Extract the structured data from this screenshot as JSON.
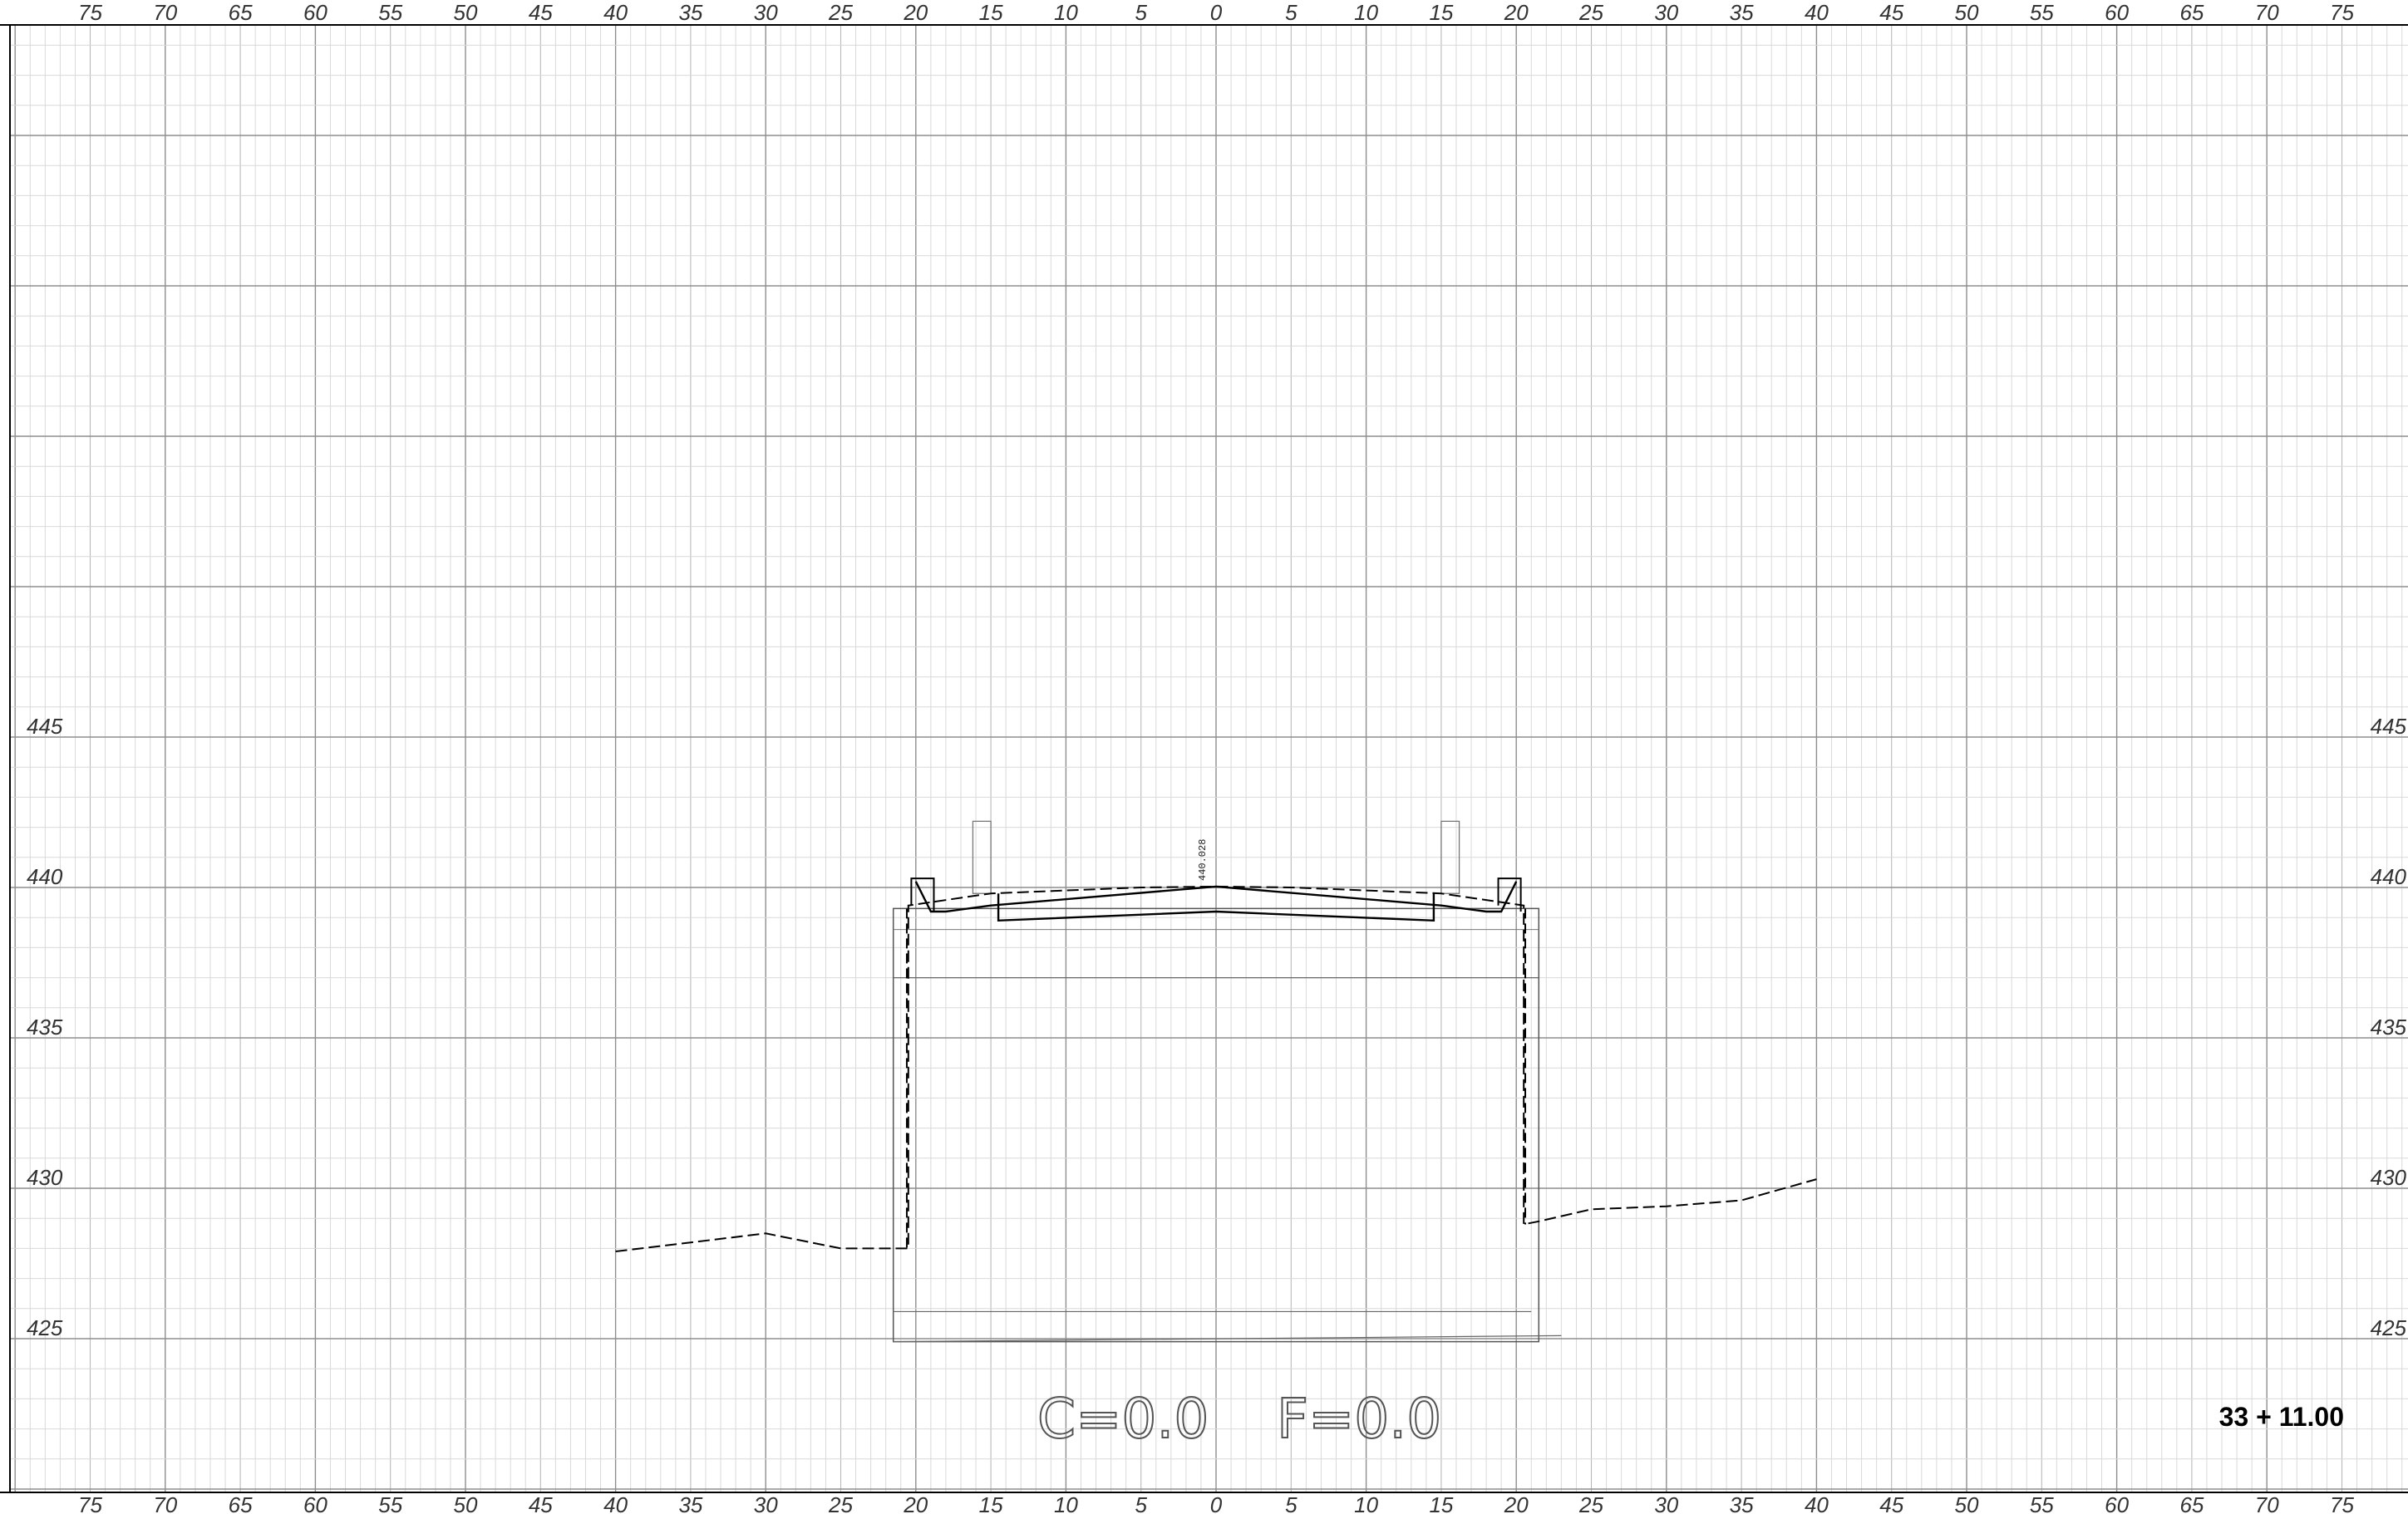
{
  "sheet": {
    "offset_ticks_top": [
      "75",
      "70",
      "65",
      "60",
      "55",
      "50",
      "45",
      "40",
      "35",
      "30",
      "25",
      "20",
      "15",
      "10",
      "5",
      "0",
      "5",
      "10",
      "15",
      "20",
      "25",
      "30",
      "35",
      "40",
      "45",
      "50",
      "55",
      "60",
      "65",
      "70",
      "75"
    ],
    "offset_ticks_bottom": [
      "75",
      "70",
      "65",
      "60",
      "55",
      "50",
      "45",
      "40",
      "35",
      "30",
      "25",
      "20",
      "15",
      "10",
      "5",
      "0",
      "5",
      "10",
      "15",
      "20",
      "25",
      "30",
      "35",
      "40",
      "45",
      "50",
      "55",
      "60",
      "65",
      "70",
      "75"
    ],
    "elevation_ticks": [
      "445",
      "440",
      "435",
      "430",
      "425"
    ],
    "cut_label": "C=0.0",
    "fill_label": "F=0.0",
    "station_label": "33 + 11.00",
    "centerline_elevation": "440.028"
  },
  "colors": {
    "background": "#ffffff",
    "grid_minor": "#d9d9d9",
    "grid_major": "#8e8e8e",
    "linework": "#000000"
  },
  "chart_data": {
    "type": "line",
    "x_range": [
      -80,
      80
    ],
    "y_range": [
      420,
      470
    ],
    "series": [
      {
        "values_xy": [
          [
            -40,
            427.9
          ],
          [
            -35,
            428.2
          ],
          [
            -30,
            428.5
          ],
          [
            -25,
            428.0
          ],
          [
            -21,
            428.0
          ],
          [
            -20.5,
            428.0
          ],
          [
            -20.5,
            439.4
          ],
          [
            -15,
            439.8
          ],
          [
            -5,
            440.0
          ],
          [
            0,
            440.03
          ],
          [
            5,
            440.0
          ],
          [
            15,
            439.8
          ],
          [
            20.5,
            439.4
          ],
          [
            20.5,
            428.8
          ],
          [
            21.5,
            428.9
          ],
          [
            25,
            429.3
          ],
          [
            30,
            429.4
          ],
          [
            35,
            429.6
          ],
          [
            40,
            430.3
          ]
        ]
      },
      {
        "values_xy": [
          [
            -20,
            440.2
          ],
          [
            -19,
            439.2
          ],
          [
            -18,
            439.2
          ],
          [
            -15,
            439.4
          ],
          [
            0,
            440.03
          ],
          [
            15,
            439.4
          ],
          [
            18,
            439.2
          ],
          [
            19,
            439.2
          ],
          [
            20,
            440.2
          ]
        ]
      },
      {
        "values_xy": [
          [
            -14.5,
            439.8
          ],
          [
            -14.5,
            438.9
          ],
          [
            0,
            439.2
          ],
          [
            14.5,
            438.9
          ],
          [
            14.5,
            439.8
          ]
        ]
      }
    ]
  }
}
